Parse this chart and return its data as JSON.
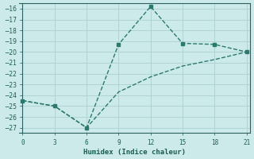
{
  "x_upper": [
    0,
    3,
    6,
    9,
    12,
    15,
    18,
    21
  ],
  "y_upper": [
    -24.5,
    -25.0,
    -27.0,
    -19.3,
    -15.8,
    -19.2,
    -19.3,
    -20.0
  ],
  "x_lower": [
    0,
    3,
    6,
    9,
    12,
    15,
    18,
    21
  ],
  "y_lower": [
    -24.5,
    -25.0,
    -27.0,
    -23.7,
    -22.3,
    -21.3,
    -20.7,
    -20.0
  ],
  "line_color": "#2a7a6e",
  "marker_color": "#2a7a6e",
  "bg_color": "#cdeaea",
  "grid_color": "#b0d4d4",
  "xlabel": "Humidex (Indice chaleur)",
  "xlim": [
    -0.3,
    21.3
  ],
  "ylim": [
    -27.5,
    -15.5
  ],
  "xticks": [
    0,
    3,
    6,
    9,
    12,
    15,
    18,
    21
  ],
  "yticks": [
    -16,
    -17,
    -18,
    -19,
    -20,
    -21,
    -22,
    -23,
    -24,
    -25,
    -26,
    -27
  ],
  "font_color": "#1a5c50",
  "axis_color": "#2a6060"
}
